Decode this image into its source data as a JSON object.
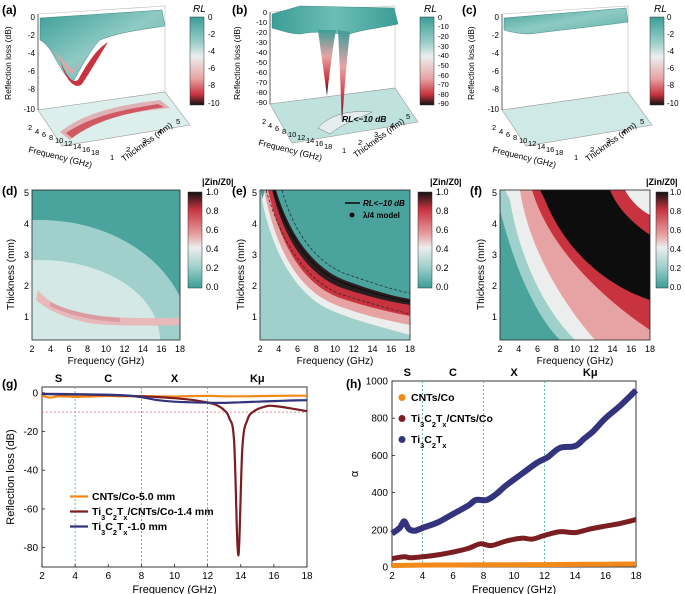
{
  "colors": {
    "teal": "#3a9e97",
    "teal_light": "#9fd0cb",
    "pale": "#eceeee",
    "red_light": "#e7a3a3",
    "red": "#c8333f",
    "dark": "#121212",
    "orange": "#f28a1a",
    "maroon": "#7a1e22",
    "navy": "#33337e",
    "guide": "#3aa7a0",
    "ref_red": "#e06a7a"
  },
  "panels_3d": [
    {
      "letter": "(a)",
      "zlabel": "Reflection loss (dB)",
      "zticks": [
        "0",
        "-2",
        "-4",
        "-6",
        "-8",
        "-10"
      ],
      "xlabel": "Frequency (GHz)",
      "xticks": [
        "2",
        "4",
        "6",
        "8",
        "10",
        "12",
        "14",
        "16",
        "18"
      ],
      "ylabel": "Thickness (mm)",
      "yticks": [
        "1",
        "2",
        "3",
        "4",
        "5"
      ],
      "cbar_title": "RL",
      "cbar_ticks": [
        "0",
        "-2",
        "-4",
        "-6",
        "-8",
        "-10"
      ]
    },
    {
      "letter": "(b)",
      "zlabel": "Reflection loss (dB)",
      "zticks": [
        "0",
        "-10",
        "-20",
        "-30",
        "-40",
        "-50",
        "-60",
        "-70",
        "-80",
        "-90"
      ],
      "xlabel": "Frequency (GHz)",
      "xticks": [
        "2",
        "4",
        "6",
        "8",
        "10",
        "12",
        "14",
        "16",
        "18"
      ],
      "ylabel": "Thickness (mm)",
      "yticks": [
        "1",
        "2",
        "3",
        "4",
        "5"
      ],
      "annotation": "RL<−10 dB",
      "cbar_title": "RL",
      "cbar_ticks": [
        "0",
        "-10",
        "-20",
        "-30",
        "-40",
        "-50",
        "-60",
        "-70",
        "-80",
        "-90"
      ]
    },
    {
      "letter": "(c)",
      "zlabel": "Reflection loss (dB)",
      "zticks": [
        "0",
        "-2",
        "-4",
        "-6",
        "-8",
        "-10"
      ],
      "xlabel": "Frequency (GHz)",
      "xticks": [
        "2",
        "4",
        "6",
        "8",
        "10",
        "12",
        "14",
        "16",
        "18"
      ],
      "ylabel": "Thickness (mm)",
      "yticks": [
        "1",
        "2",
        "3",
        "4",
        "5"
      ],
      "cbar_title": "RL",
      "cbar_ticks": [
        "0",
        "-2",
        "-4",
        "-6",
        "-8",
        "-10"
      ]
    }
  ],
  "panels_map": [
    {
      "letter": "(d)",
      "ylabel": "Thickness (mm)",
      "xlabel": "Frequency (GHz)",
      "xticks": [
        "2",
        "4",
        "6",
        "8",
        "10",
        "12",
        "14",
        "16",
        "18"
      ],
      "yticks": [
        "1",
        "2",
        "3",
        "4",
        "5"
      ],
      "cbar_title": "|Zin/Z0|",
      "cbar_ticks": [
        "1.0",
        "0.8",
        "0.6",
        "0.4",
        "0.2",
        "0.0"
      ]
    },
    {
      "letter": "(e)",
      "ylabel": "Thickness (mm)",
      "xlabel": "Frequency (GHz)",
      "xticks": [
        "2",
        "4",
        "6",
        "8",
        "10",
        "12",
        "14",
        "16",
        "18"
      ],
      "yticks": [
        "1",
        "2",
        "3",
        "4",
        "5"
      ],
      "legend_line": "RL<−10 dB",
      "legend_dot": "λ/4 model",
      "cbar_title": "|Zin/Z0|",
      "cbar_ticks": [
        "1.0",
        "0.8",
        "0.6",
        "0.4",
        "0.2",
        "0.0"
      ]
    },
    {
      "letter": "(f)",
      "ylabel": "Thickness (mm)",
      "xlabel": "Frequency (GHz)",
      "xticks": [
        "2",
        "4",
        "6",
        "8",
        "10",
        "12",
        "14",
        "16",
        "18"
      ],
      "yticks": [
        "1",
        "2",
        "3",
        "4",
        "5"
      ],
      "cbar_title": "|Zin/Z0|",
      "cbar_ticks": [
        "1.0",
        "0.8",
        "0.6",
        "0.4",
        "0.2",
        "0.0"
      ]
    }
  ],
  "chart_data": [
    {
      "type": "line",
      "panel": "(g)",
      "xlabel": "Frequency (GHz)",
      "ylabel": "Reflection loss (dB)",
      "xlim": [
        2,
        18
      ],
      "ylim": [
        -90,
        3
      ],
      "xticks": [
        2,
        4,
        6,
        8,
        10,
        12,
        14,
        16,
        18
      ],
      "yticks": [
        0,
        -20,
        -40,
        -60,
        -80
      ],
      "bands": [
        "S",
        "C",
        "X",
        "Kμ"
      ],
      "band_edges": [
        4,
        8,
        12
      ],
      "reference_y": -10,
      "series": [
        {
          "name": "CNTs/Co-5.0 mm",
          "color": "#f28a1a",
          "x": [
            2,
            2.5,
            3,
            4,
            5,
            6,
            7,
            8,
            9,
            10,
            11,
            12,
            13,
            14,
            15,
            16,
            17,
            18
          ],
          "y": [
            -1.5,
            -2.5,
            -1.8,
            -2.1,
            -1.9,
            -1.6,
            -1.8,
            -1.7,
            -1.8,
            -1.9,
            -1.7,
            -1.6,
            -1.8,
            -1.8,
            -1.7,
            -1.6,
            -1.5,
            -1.5
          ]
        },
        {
          "name": "Ti3C2Tx/CNTs/Co-1.4 mm",
          "color": "#7a1e22",
          "x": [
            2,
            4,
            6,
            8,
            9,
            10,
            11,
            12,
            12.5,
            13,
            13.3,
            13.6,
            13.85,
            14.1,
            14.4,
            14.8,
            15.5,
            16,
            17,
            18
          ],
          "y": [
            -0.6,
            -0.9,
            -1.2,
            -1.8,
            -2.2,
            -2.8,
            -3.6,
            -5,
            -6.2,
            -9,
            -13,
            -25,
            -84,
            -28,
            -14,
            -9.5,
            -7,
            -6.8,
            -8,
            -9.5
          ]
        },
        {
          "name": "Ti3C2Tx-1.0 mm",
          "color": "#33337e",
          "x": [
            2,
            4,
            6,
            7,
            8,
            9,
            10,
            11,
            12,
            13,
            14,
            15,
            16,
            17,
            18
          ],
          "y": [
            -0.5,
            -0.7,
            -1.0,
            -1.3,
            -2.2,
            -3.8,
            -4.6,
            -4.9,
            -5.1,
            -5.2,
            -4.9,
            -4.6,
            -4.3,
            -4.0,
            -3.8
          ]
        }
      ]
    },
    {
      "type": "line",
      "panel": "(h)",
      "xlabel": "Frequency (GHz)",
      "ylabel": "α",
      "xlim": [
        2,
        18
      ],
      "ylim": [
        0,
        1000
      ],
      "xticks": [
        2,
        4,
        6,
        8,
        10,
        12,
        14,
        16,
        18
      ],
      "yticks": [
        0,
        200,
        400,
        600,
        800,
        1000
      ],
      "bands": [
        "S",
        "C",
        "X",
        "Kμ"
      ],
      "band_edges": [
        4,
        8,
        12
      ],
      "series": [
        {
          "name": "CNTs/Co",
          "color": "#f28a1a",
          "x": [
            2,
            4,
            6,
            8,
            10,
            12,
            14,
            16,
            18
          ],
          "y": [
            8,
            10,
            11,
            12,
            12,
            13,
            14,
            15,
            16
          ]
        },
        {
          "name": "Ti3C2Tx/CNTs/Co",
          "color": "#7a1e22",
          "x": [
            2,
            2.8,
            3.2,
            4,
            5,
            6,
            7,
            7.8,
            8.5,
            9.5,
            10.5,
            11.2,
            12,
            13,
            14,
            15,
            16,
            17,
            18
          ],
          "y": [
            45,
            55,
            50,
            55,
            65,
            80,
            100,
            125,
            115,
            140,
            155,
            150,
            170,
            190,
            185,
            205,
            220,
            235,
            255
          ]
        },
        {
          "name": "Ti3C2Tx",
          "color": "#33337e",
          "x": [
            2,
            2.5,
            2.8,
            3.1,
            3.5,
            4,
            5,
            6,
            7,
            7.5,
            8.2,
            8.8,
            9.5,
            10.5,
            11.5,
            12.2,
            13,
            14,
            14.6,
            15.2,
            16,
            17,
            18
          ],
          "y": [
            180,
            210,
            245,
            205,
            195,
            210,
            240,
            285,
            330,
            360,
            360,
            390,
            440,
            500,
            560,
            590,
            640,
            650,
            690,
            730,
            800,
            870,
            950
          ]
        }
      ]
    }
  ]
}
